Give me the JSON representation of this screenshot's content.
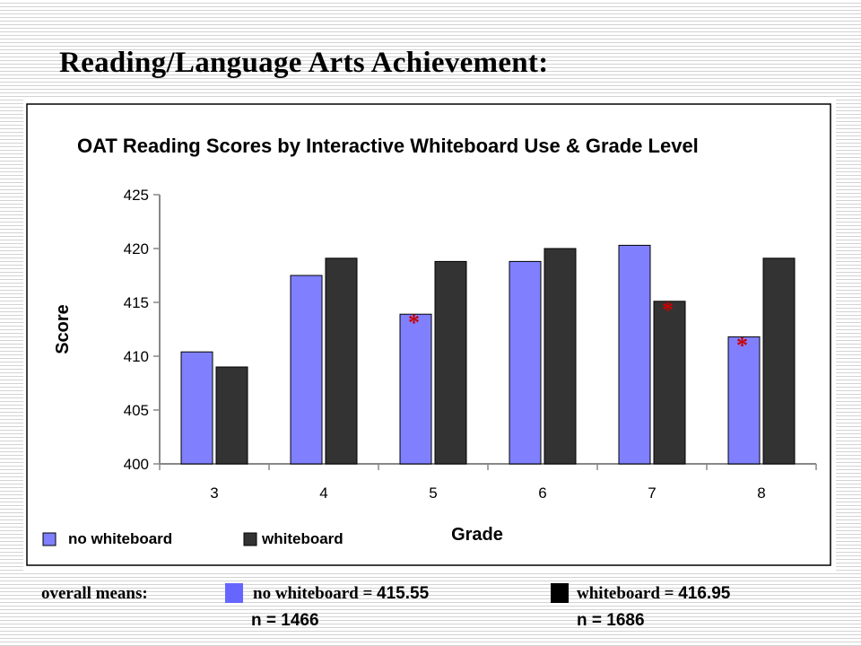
{
  "slide": {
    "title": "Reading/Language Arts Achievement:"
  },
  "chart_data": {
    "type": "bar",
    "title": "OAT Reading Scores by Interactive Whiteboard Use & Grade Level",
    "xlabel": "Grade",
    "ylabel": "Score",
    "ylim": [
      400,
      425
    ],
    "yticks": [
      400,
      405,
      410,
      415,
      420,
      425
    ],
    "categories": [
      "3",
      "4",
      "5",
      "6",
      "7",
      "8"
    ],
    "series": [
      {
        "name": "no whiteboard",
        "color": "#8080ff",
        "values": [
          410.4,
          417.5,
          413.9,
          418.8,
          420.3,
          411.8
        ]
      },
      {
        "name": "whiteboard",
        "color": "#333333",
        "values": [
          409.0,
          419.1,
          418.8,
          420.0,
          415.1,
          419.1
        ]
      }
    ],
    "significance_marks": [
      {
        "category": "5",
        "series": "no whiteboard",
        "label": "*"
      },
      {
        "category": "7",
        "series": "whiteboard",
        "label": "*"
      },
      {
        "category": "8",
        "series": "no whiteboard",
        "label": "*"
      }
    ],
    "legend": "bottom-left",
    "grid": false
  },
  "means": {
    "label": "overall means:",
    "no_whiteboard": {
      "label": "no whiteboard = ",
      "value": "415.55",
      "n": "n = 1466",
      "color": "#6666ff"
    },
    "whiteboard": {
      "label": "whiteboard = ",
      "value": "416.95",
      "n": "n = 1686",
      "color": "#000000"
    }
  }
}
